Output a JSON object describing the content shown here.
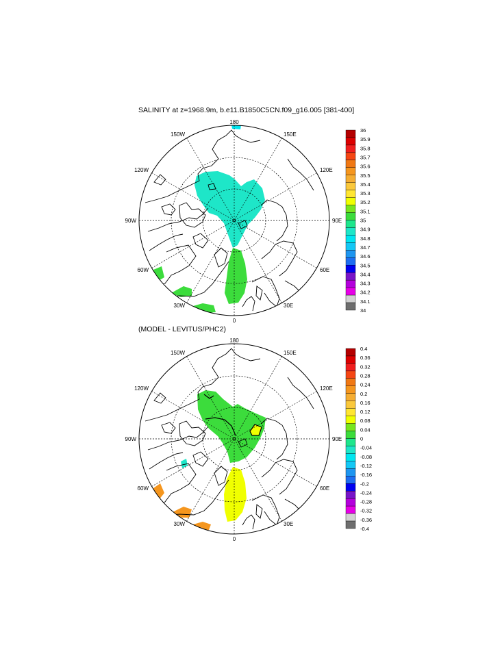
{
  "panels": [
    {
      "title": "SALINITY at z=1968.9m, b.e11.B1850C5CN.f09_g16.005 [381-400]",
      "lon_labels": [
        "180",
        "150E",
        "120E",
        "90E",
        "60E",
        "30E",
        "0",
        "30W",
        "60W",
        "90W",
        "120W",
        "150W"
      ],
      "colorbar_labels": [
        "36",
        "35.9",
        "35.8",
        "35.7",
        "35.6",
        "35.5",
        "35.4",
        "35.3",
        "35.2",
        "35.1",
        "35",
        "34.9",
        "34.8",
        "34.7",
        "34.6",
        "34.5",
        "34.4",
        "34.3",
        "34.2",
        "34.1",
        "34"
      ]
    },
    {
      "title": "(MODEL - LEVITUS/PHC2)",
      "lon_labels": [
        "180",
        "150E",
        "120E",
        "90E",
        "60E",
        "30E",
        "0",
        "30W",
        "60W",
        "90W",
        "120W",
        "150W"
      ],
      "colorbar_labels": [
        "0.4",
        "0.36",
        "0.32",
        "0.28",
        "0.24",
        "0.2",
        "0.16",
        "0.12",
        "0.08",
        "0.04",
        "0",
        "-0.04",
        "-0.08",
        "-0.12",
        "-0.16",
        "-0.2",
        "-0.24",
        "-0.28",
        "-0.32",
        "-0.36",
        "-0.4"
      ]
    }
  ],
  "colorbar_colors": [
    "#b40000",
    "#dc0000",
    "#f01e1e",
    "#f54614",
    "#f07814",
    "#f5961e",
    "#f5ad32",
    "#fac83c",
    "#ffe632",
    "#f0ff00",
    "#78e61e",
    "#3cdc3c",
    "#1ee68c",
    "#1ee6c8",
    "#00e6f0",
    "#14c8f5",
    "#1e96f0",
    "#1e6ef0",
    "#0000f0",
    "#7814c8",
    "#b400dc",
    "#e600e6",
    "#d2d2d2",
    "#6e6e6e"
  ]
}
